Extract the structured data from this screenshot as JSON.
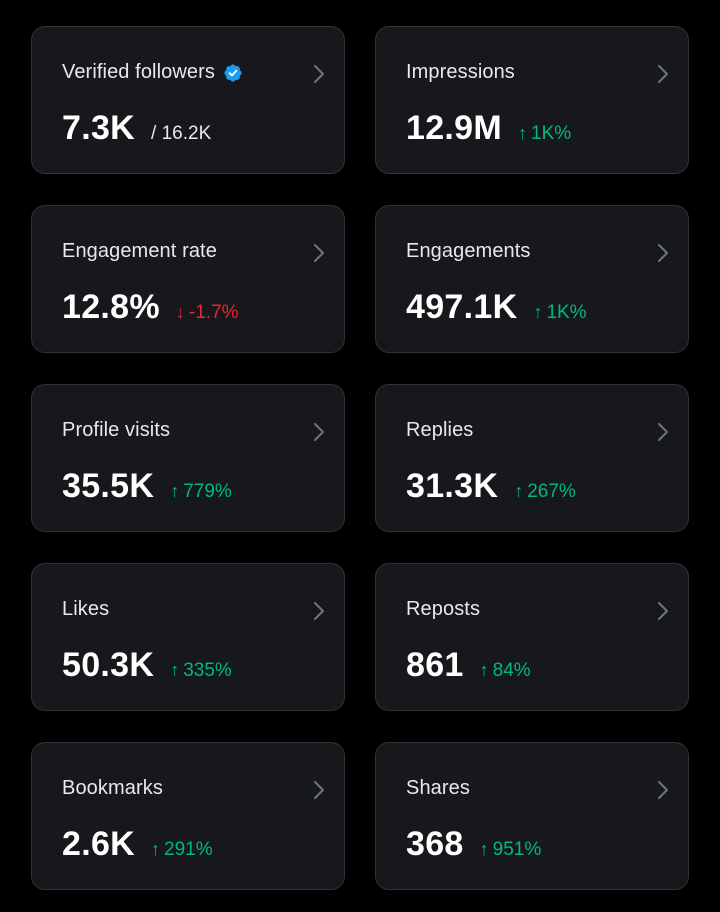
{
  "colors": {
    "background": "#000000",
    "card": "#16181c",
    "up": "#00ba7c",
    "down": "#f4212e",
    "verified": "#1d9bf0"
  },
  "cards": [
    {
      "title": "Verified followers",
      "value": "7.3K",
      "secondary": "/ 16.2K",
      "change": "",
      "direction": "none"
    },
    {
      "title": "Impressions",
      "value": "12.9M",
      "secondary": "",
      "change": "1K%",
      "direction": "up"
    },
    {
      "title": "Engagement rate",
      "value": "12.8%",
      "secondary": "",
      "change": "-1.7%",
      "direction": "down"
    },
    {
      "title": "Engagements",
      "value": "497.1K",
      "secondary": "",
      "change": "1K%",
      "direction": "up"
    },
    {
      "title": "Profile visits",
      "value": "35.5K",
      "secondary": "",
      "change": "779%",
      "direction": "up"
    },
    {
      "title": "Replies",
      "value": "31.3K",
      "secondary": "",
      "change": "267%",
      "direction": "up"
    },
    {
      "title": "Likes",
      "value": "50.3K",
      "secondary": "",
      "change": "335%",
      "direction": "up"
    },
    {
      "title": "Reposts",
      "value": "861",
      "secondary": "",
      "change": "84%",
      "direction": "up"
    },
    {
      "title": "Bookmarks",
      "value": "2.6K",
      "secondary": "",
      "change": "291%",
      "direction": "up"
    },
    {
      "title": "Shares",
      "value": "368",
      "secondary": "",
      "change": "951%",
      "direction": "up"
    }
  ]
}
